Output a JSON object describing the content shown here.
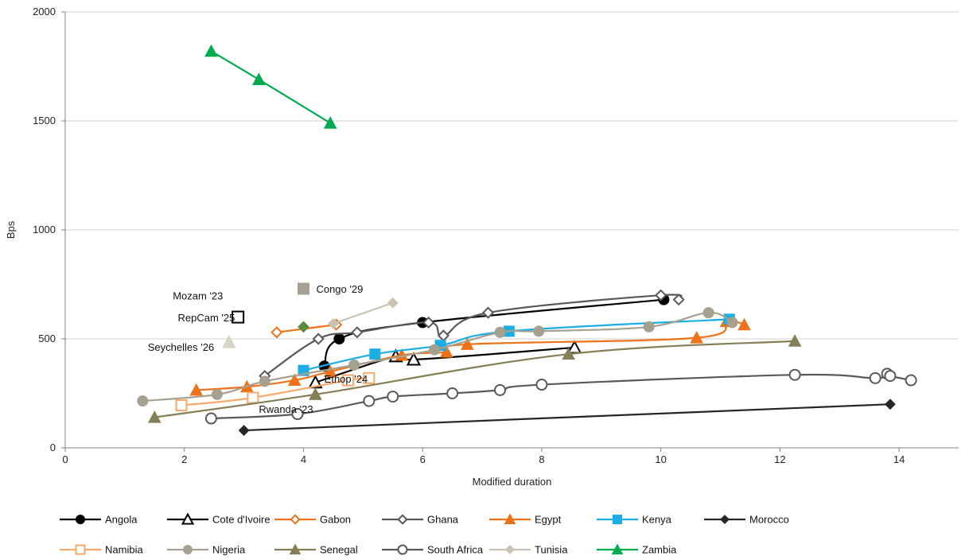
{
  "chart_data": {
    "type": "scatter",
    "xlabel": "Modified duration",
    "ylabel": "Bps",
    "xlim": [
      0,
      15
    ],
    "ylim": [
      0,
      2000
    ],
    "x_ticks": [
      0,
      2,
      4,
      6,
      8,
      10,
      12,
      14
    ],
    "y_ticks": [
      0,
      500,
      1000,
      1500,
      2000
    ],
    "grid": "horizontal",
    "legend_position": "bottom",
    "series": [
      {
        "name": "Angola",
        "color": "#000000",
        "marker": "circle-filled",
        "points": [
          [
            4.35,
            375
          ],
          [
            4.6,
            500
          ],
          [
            6.0,
            575
          ],
          [
            10.05,
            680
          ]
        ]
      },
      {
        "name": "Cote d'Ivoire",
        "color": "#000000",
        "marker": "triangle-open",
        "points": [
          [
            4.2,
            300
          ],
          [
            5.55,
            420
          ],
          [
            5.85,
            405
          ],
          [
            8.55,
            460
          ]
        ]
      },
      {
        "name": "Gabon",
        "color": "#EE7219",
        "marker": "diamond-open",
        "points": [
          [
            3.55,
            530
          ],
          [
            4.55,
            565
          ]
        ]
      },
      {
        "name": "Ghana",
        "color": "#595959",
        "marker": "diamond-open",
        "points": [
          [
            3.35,
            330
          ],
          [
            4.25,
            500
          ],
          [
            4.9,
            530
          ],
          [
            6.1,
            575
          ],
          [
            6.35,
            515
          ],
          [
            7.1,
            620
          ],
          [
            10.0,
            700
          ],
          [
            10.3,
            680
          ]
        ]
      },
      {
        "name": "Egypt",
        "color": "#EE7219",
        "marker": "triangle-filled",
        "points": [
          [
            2.2,
            265
          ],
          [
            3.05,
            280
          ],
          [
            3.85,
            310
          ],
          [
            4.45,
            350
          ],
          [
            5.65,
            425
          ],
          [
            6.4,
            440
          ],
          [
            6.75,
            475
          ],
          [
            10.6,
            505
          ],
          [
            11.1,
            580
          ],
          [
            11.4,
            565
          ]
        ]
      },
      {
        "name": "Kenya",
        "color": "#1CADE4",
        "marker": "square-filled",
        "points": [
          [
            4.0,
            355
          ],
          [
            5.2,
            430
          ],
          [
            6.3,
            470
          ],
          [
            7.45,
            535
          ],
          [
            11.15,
            590
          ]
        ]
      },
      {
        "name": "Morocco",
        "color": "#262626",
        "marker": "diamond-filled",
        "points": [
          [
            3.0,
            80
          ],
          [
            13.85,
            200
          ]
        ]
      },
      {
        "name": "Namibia",
        "color": "#F7A86B",
        "marker": "square-open",
        "points": [
          [
            1.95,
            195
          ],
          [
            3.15,
            230
          ],
          [
            4.75,
            310
          ],
          [
            5.1,
            320
          ]
        ]
      },
      {
        "name": "Nigeria",
        "color": "#A5A08F",
        "marker": "circle-filled",
        "points": [
          [
            1.3,
            215
          ],
          [
            2.55,
            245
          ],
          [
            3.35,
            305
          ],
          [
            4.85,
            380
          ],
          [
            6.2,
            450
          ],
          [
            7.3,
            530
          ],
          [
            7.95,
            535
          ],
          [
            9.8,
            555
          ],
          [
            10.8,
            620
          ],
          [
            11.2,
            575
          ]
        ]
      },
      {
        "name": "Senegal",
        "color": "#857F57",
        "marker": "triangle-filled",
        "points": [
          [
            1.5,
            140
          ],
          [
            4.2,
            245
          ],
          [
            8.45,
            430
          ],
          [
            12.25,
            490
          ]
        ]
      },
      {
        "name": "South Africa",
        "color": "#595959",
        "marker": "circle-open",
        "points": [
          [
            2.45,
            135
          ],
          [
            3.9,
            155
          ],
          [
            5.1,
            215
          ],
          [
            5.5,
            235
          ],
          [
            6.5,
            250
          ],
          [
            7.3,
            265
          ],
          [
            8.0,
            290
          ],
          [
            12.25,
            335
          ],
          [
            13.6,
            320
          ],
          [
            13.8,
            340
          ],
          [
            13.85,
            330
          ],
          [
            14.2,
            310
          ]
        ]
      },
      {
        "name": "Tunisia",
        "color": "#C9C3B3",
        "marker": "diamond-filled",
        "points": [
          [
            4.5,
            570
          ],
          [
            5.5,
            665
          ]
        ]
      }
    ],
    "series_extra": [
      {
        "name": "Zambia",
        "color": "#00AA50",
        "marker": "triangle-filled",
        "points": [
          [
            2.45,
            1820
          ],
          [
            3.25,
            1690
          ],
          [
            4.45,
            1490
          ]
        ]
      }
    ],
    "single_points": [
      {
        "label": "Congo '29",
        "x": 4.0,
        "y": 730,
        "color": "#A5A08F",
        "marker": "square-filled"
      },
      {
        "label": "Mozam '23",
        "x": 2.9,
        "y": 600,
        "color": "#000000",
        "marker": "square-open"
      },
      {
        "label": "RepCam '25",
        "x": 4.0,
        "y": 555,
        "color": "#5A8A3C",
        "marker": "diamond-filled"
      },
      {
        "label": "Seychelles '26",
        "x": 2.75,
        "y": 485,
        "color": "#D9D4C7",
        "marker": "triangle-filled"
      },
      {
        "label": "Ethop '24",
        "x": 4.2,
        "y": 305,
        "color": "#000000",
        "marker": "none"
      },
      {
        "label": "Rwanda '23",
        "x": 4.2,
        "y": 255,
        "color": "#857F57",
        "marker": "none"
      }
    ],
    "legend_entries": [
      "Angola",
      "Cote d'Ivoire",
      "Gabon",
      "Ghana",
      "Egypt",
      "Kenya",
      "Morocco",
      "Namibia",
      "Nigeria",
      "Senegal",
      "South Africa",
      "Tunisia",
      "Zambia"
    ]
  }
}
